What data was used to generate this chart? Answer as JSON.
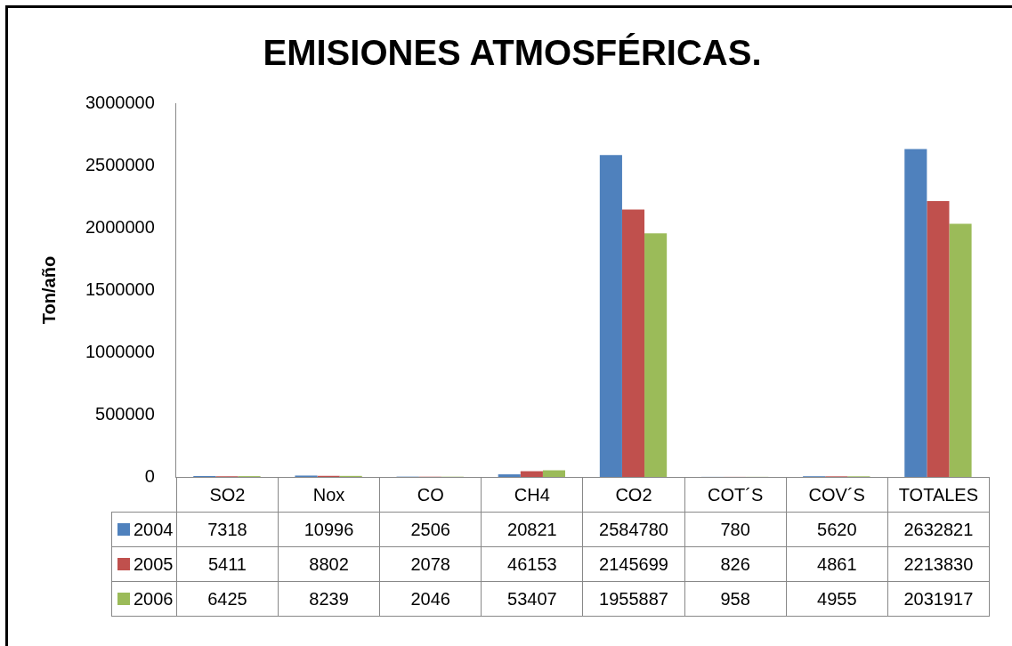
{
  "chart_data": {
    "type": "bar",
    "title": "EMISIONES ATMOSFÉRICAS.",
    "ylabel": "Ton/año",
    "categories": [
      "SO2",
      "Nox",
      "CO",
      "CH4",
      "CO2",
      "COT´S",
      "COV´S",
      "TOTALES"
    ],
    "series": [
      {
        "name": "2004",
        "color": "#4f81bd",
        "values": [
          7318,
          10996,
          2506,
          20821,
          2584780,
          780,
          5620,
          2632821
        ]
      },
      {
        "name": "2005",
        "color": "#c0504d",
        "values": [
          5411,
          8802,
          2078,
          46153,
          2145699,
          826,
          4861,
          2213830
        ]
      },
      {
        "name": "2006",
        "color": "#9bbb59",
        "values": [
          6425,
          8239,
          2046,
          53407,
          1955887,
          958,
          4955,
          2031917
        ]
      }
    ],
    "ylim": [
      0,
      3000000
    ],
    "yticks": [
      0,
      500000,
      1000000,
      1500000,
      2000000,
      2500000,
      3000000
    ],
    "grid": false,
    "legend": "bottom",
    "data_labels": true
  }
}
